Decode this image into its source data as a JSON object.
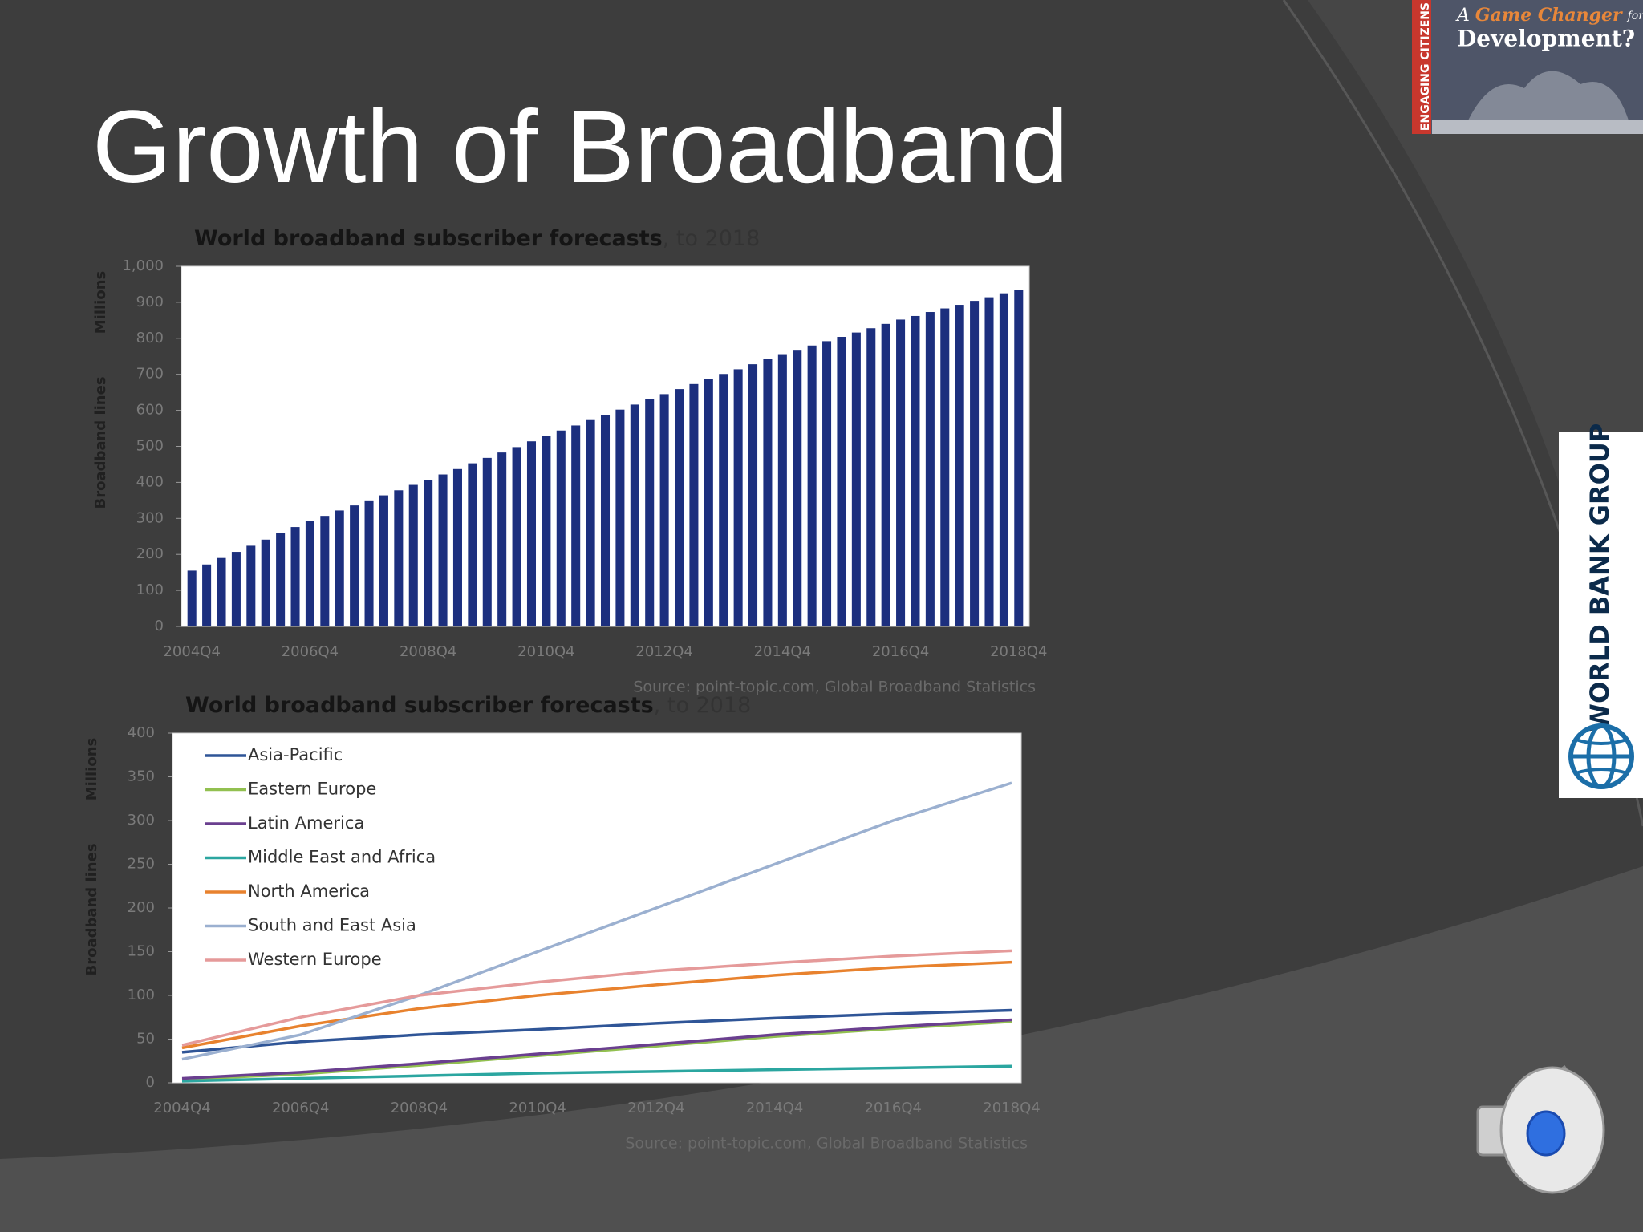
{
  "slide": {
    "title": "Growth of Broadband",
    "logo": {
      "side": "ENGAGING CITIZENS",
      "a": "A",
      "game_changer": "Game Changer",
      "for": "for",
      "development": "Development?"
    },
    "side_logo": "WORLD BANK GROUP"
  },
  "chart_data": [
    {
      "type": "bar",
      "title": "World broadband subscriber forecasts",
      "title_suffix": ", to 2018",
      "y_label": "Broadband lines",
      "y_unit": "Millions",
      "source": "Source: point-topic.com, Global Broadband Statistics",
      "categories": [
        "2004Q4",
        null,
        null,
        null,
        null,
        null,
        null,
        null,
        "2006Q4",
        null,
        null,
        null,
        null,
        null,
        null,
        null,
        "2008Q4",
        null,
        null,
        null,
        null,
        null,
        null,
        null,
        "2010Q4",
        null,
        null,
        null,
        null,
        null,
        null,
        null,
        "2012Q4",
        null,
        null,
        null,
        null,
        null,
        null,
        null,
        "2014Q4",
        null,
        null,
        null,
        null,
        null,
        null,
        null,
        "2016Q4",
        null,
        null,
        null,
        null,
        null,
        null,
        null,
        "2018Q4"
      ],
      "values": [
        155,
        172,
        190,
        207,
        224,
        241,
        259,
        276,
        293,
        307,
        322,
        336,
        350,
        364,
        378,
        393,
        407,
        422,
        437,
        453,
        468,
        483,
        498,
        514,
        529,
        544,
        558,
        573,
        587,
        602,
        616,
        631,
        645,
        659,
        673,
        687,
        701,
        714,
        728,
        742,
        756,
        768,
        780,
        792,
        804,
        816,
        828,
        840,
        852,
        862,
        873,
        883,
        893,
        904,
        914,
        925,
        935
      ],
      "color": "#1c2f7e",
      "ylim": [
        0,
        1000
      ],
      "yticks": [
        0,
        100,
        200,
        300,
        400,
        500,
        600,
        700,
        800,
        900,
        {
          "value": 1000,
          "label": "1,000"
        }
      ],
      "grid": false
    },
    {
      "type": "line",
      "title": "World broadband subscriber forecasts",
      "title_suffix": ", to 2018",
      "y_label": "Broadband lines",
      "y_unit": "Millions",
      "source": "Source: point-topic.com, Global Broadband Statistics",
      "categories": [
        "2004Q4",
        "2006Q4",
        "2008Q4",
        "2010Q4",
        "2012Q4",
        "2014Q4",
        "2016Q4",
        "2018Q4"
      ],
      "series": [
        {
          "name": "Asia-Pacific",
          "color": "#2f5597",
          "values": [
            35,
            47,
            55,
            61,
            68,
            74,
            79,
            83
          ]
        },
        {
          "name": "Eastern Europe",
          "color": "#92c050",
          "values": [
            4,
            10,
            20,
            31,
            42,
            53,
            62,
            70
          ]
        },
        {
          "name": "Latin America",
          "color": "#6a3f8f",
          "values": [
            5,
            12,
            22,
            33,
            44,
            55,
            64,
            72
          ]
        },
        {
          "name": "Middle East and Africa",
          "color": "#2ba6a0",
          "values": [
            2,
            5,
            8,
            11,
            13,
            15,
            17,
            19
          ]
        },
        {
          "name": "North America",
          "color": "#e8822e",
          "values": [
            40,
            65,
            85,
            100,
            112,
            123,
            132,
            138
          ]
        },
        {
          "name": "South and East Asia",
          "color": "#9bb0d0",
          "values": [
            27,
            55,
            100,
            150,
            200,
            250,
            300,
            343
          ]
        },
        {
          "name": "Western Europe",
          "color": "#e59a9a",
          "values": [
            43,
            75,
            100,
            115,
            128,
            137,
            145,
            151
          ]
        }
      ],
      "ylim": [
        0,
        400
      ],
      "yticks": [
        0,
        50,
        100,
        150,
        200,
        250,
        300,
        350,
        400
      ],
      "grid": false,
      "legend": "upper left"
    }
  ]
}
